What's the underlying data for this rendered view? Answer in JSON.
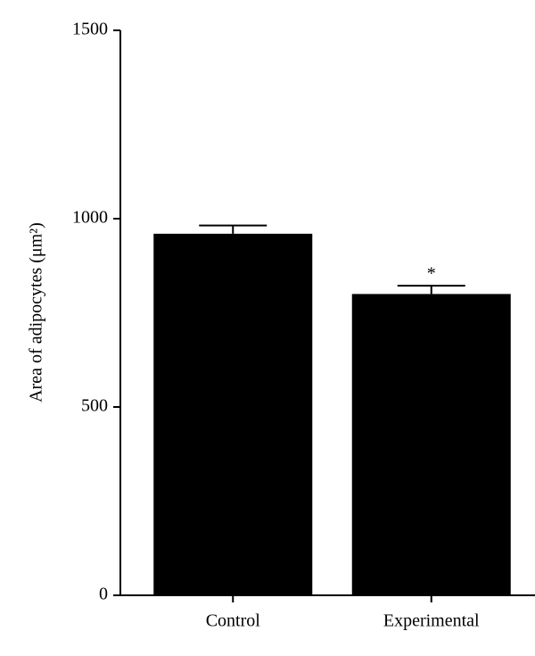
{
  "chart_data": {
    "type": "bar",
    "y_label": "Area of adipocytes (μm²)",
    "categories": [
      "Control",
      "Experimental"
    ],
    "values": [
      960,
      800
    ],
    "errors": [
      22,
      22
    ],
    "annotations": [
      null,
      "*"
    ],
    "color": "#000000",
    "ylim": [
      0,
      1500
    ],
    "yticks": [
      0,
      500,
      1000,
      1500
    ],
    "grid": false
  }
}
